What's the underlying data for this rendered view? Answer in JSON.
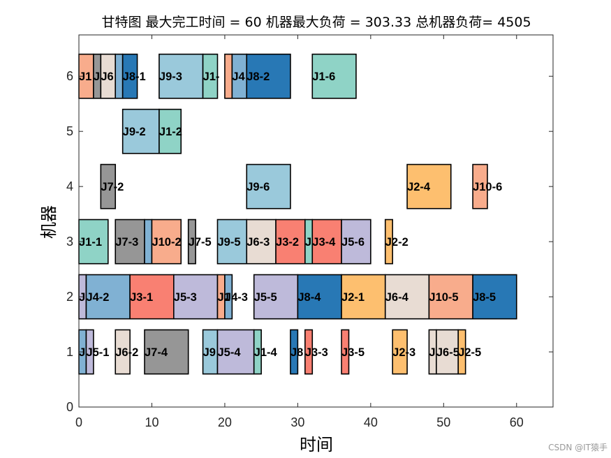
{
  "chart_data": {
    "type": "gantt",
    "title": "甘特图 最大完工时间 = 60 机器最大负荷 = 303.33 总机器负荷= 4505",
    "xlabel": "时间",
    "ylabel": "机器",
    "xlim": [
      0,
      65
    ],
    "ylim": [
      0,
      6.75
    ],
    "xticks": [
      0,
      10,
      20,
      30,
      40,
      50,
      60
    ],
    "yticks": [
      0,
      1,
      2,
      3,
      4,
      5,
      6
    ],
    "grid": false,
    "legend": "none",
    "job_colors": {
      "J1": "#8FD3C6",
      "J2": "#FDBF6F",
      "J3": "#F98072",
      "J4": "#80B1D3",
      "J5": "#BEBADA",
      "J6": "#E8DCD3",
      "J7": "#969696",
      "J8": "#2878B5",
      "J9": "#9AC9DB",
      "J10": "#F8AC8C"
    },
    "tasks": [
      {
        "machine": 1,
        "start": 0,
        "end": 1,
        "job": "J4",
        "label": "J"
      },
      {
        "machine": 1,
        "start": 1,
        "end": 2,
        "job": "J5",
        "label": "J5-1"
      },
      {
        "machine": 1,
        "start": 5,
        "end": 7,
        "job": "J6",
        "label": "J6-2"
      },
      {
        "machine": 1,
        "start": 9,
        "end": 15,
        "job": "J7",
        "label": "J7-4"
      },
      {
        "machine": 1,
        "start": 17,
        "end": 19,
        "job": "J9",
        "label": "J9"
      },
      {
        "machine": 1,
        "start": 19,
        "end": 24,
        "job": "J5",
        "label": "J5-4"
      },
      {
        "machine": 1,
        "start": 24,
        "end": 25,
        "job": "J1",
        "label": "J1-4"
      },
      {
        "machine": 1,
        "start": 29,
        "end": 30,
        "job": "J8",
        "label": "J8"
      },
      {
        "machine": 1,
        "start": 31,
        "end": 32,
        "job": "J3",
        "label": "J3-3"
      },
      {
        "machine": 1,
        "start": 36,
        "end": 37,
        "job": "J3",
        "label": "J3-5"
      },
      {
        "machine": 1,
        "start": 43,
        "end": 45,
        "job": "J2",
        "label": "J2-3"
      },
      {
        "machine": 1,
        "start": 48,
        "end": 49,
        "job": "J6",
        "label": "J"
      },
      {
        "machine": 1,
        "start": 49,
        "end": 52,
        "job": "J6",
        "label": "J6-5"
      },
      {
        "machine": 1,
        "start": 52,
        "end": 53,
        "job": "J2",
        "label": "J2-5"
      },
      {
        "machine": 2,
        "start": 0,
        "end": 1,
        "job": "J5",
        "label": "J"
      },
      {
        "machine": 2,
        "start": 1,
        "end": 7,
        "job": "J4",
        "label": "J4-2"
      },
      {
        "machine": 2,
        "start": 7,
        "end": 13,
        "job": "J3",
        "label": "J3-1"
      },
      {
        "machine": 2,
        "start": 13,
        "end": 19,
        "job": "J5",
        "label": "J5-3"
      },
      {
        "machine": 2,
        "start": 19,
        "end": 20,
        "job": "J10",
        "label": "J1"
      },
      {
        "machine": 2,
        "start": 20,
        "end": 21,
        "job": "J4",
        "label": "J4-3"
      },
      {
        "machine": 2,
        "start": 24,
        "end": 30,
        "job": "J5",
        "label": "J5-5"
      },
      {
        "machine": 2,
        "start": 30,
        "end": 36,
        "job": "J8",
        "label": "J8-4"
      },
      {
        "machine": 2,
        "start": 36,
        "end": 42,
        "job": "J2",
        "label": "J2-1"
      },
      {
        "machine": 2,
        "start": 42,
        "end": 48,
        "job": "J6",
        "label": "J6-4"
      },
      {
        "machine": 2,
        "start": 48,
        "end": 54,
        "job": "J10",
        "label": "J10-5"
      },
      {
        "machine": 2,
        "start": 54,
        "end": 60,
        "job": "J8",
        "label": "J8-5"
      },
      {
        "machine": 3,
        "start": 0,
        "end": 4,
        "job": "J1",
        "label": "J1-1"
      },
      {
        "machine": 3,
        "start": 5,
        "end": 9,
        "job": "J7",
        "label": "J7-3"
      },
      {
        "machine": 3,
        "start": 9,
        "end": 10,
        "job": "J4",
        "label": ""
      },
      {
        "machine": 3,
        "start": 10,
        "end": 14,
        "job": "J10",
        "label": "J10-2"
      },
      {
        "machine": 3,
        "start": 15,
        "end": 16,
        "job": "J7",
        "label": "J7-5"
      },
      {
        "machine": 3,
        "start": 19,
        "end": 23,
        "job": "J9",
        "label": "J9-5"
      },
      {
        "machine": 3,
        "start": 23,
        "end": 27,
        "job": "J6",
        "label": "J6-3"
      },
      {
        "machine": 3,
        "start": 27,
        "end": 31,
        "job": "J3",
        "label": "J3-2"
      },
      {
        "machine": 3,
        "start": 31,
        "end": 32,
        "job": "J1",
        "label": "J"
      },
      {
        "machine": 3,
        "start": 32,
        "end": 36,
        "job": "J3",
        "label": "J3-4"
      },
      {
        "machine": 3,
        "start": 36,
        "end": 40,
        "job": "J5",
        "label": "J5-6"
      },
      {
        "machine": 3,
        "start": 42,
        "end": 43,
        "job": "J2",
        "label": "J2-2"
      },
      {
        "machine": 4,
        "start": 3,
        "end": 5,
        "job": "J7",
        "label": "J7-2"
      },
      {
        "machine": 4,
        "start": 23,
        "end": 29,
        "job": "J9",
        "label": "J9-6"
      },
      {
        "machine": 4,
        "start": 45,
        "end": 51,
        "job": "J2",
        "label": "J2-4"
      },
      {
        "machine": 4,
        "start": 54,
        "end": 56,
        "job": "J10",
        "label": "J10-6"
      },
      {
        "machine": 5,
        "start": 6,
        "end": 11,
        "job": "J9",
        "label": "J9-2"
      },
      {
        "machine": 5,
        "start": 11,
        "end": 14,
        "job": "J1",
        "label": "J1-2"
      },
      {
        "machine": 6,
        "start": 0,
        "end": 2,
        "job": "J10",
        "label": "J1"
      },
      {
        "machine": 6,
        "start": 2,
        "end": 3,
        "job": "J7",
        "label": "J"
      },
      {
        "machine": 6,
        "start": 3,
        "end": 5,
        "job": "J6",
        "label": "J6"
      },
      {
        "machine": 6,
        "start": 5,
        "end": 6,
        "job": "J4",
        "label": ""
      },
      {
        "machine": 6,
        "start": 6,
        "end": 8,
        "job": "J8",
        "label": "J8-1"
      },
      {
        "machine": 6,
        "start": 11,
        "end": 17,
        "job": "J9",
        "label": "J9-3"
      },
      {
        "machine": 6,
        "start": 17,
        "end": 19,
        "job": "J1",
        "label": "J1-"
      },
      {
        "machine": 6,
        "start": 20,
        "end": 21,
        "job": "J10",
        "label": ""
      },
      {
        "machine": 6,
        "start": 21,
        "end": 23,
        "job": "J4",
        "label": "J4"
      },
      {
        "machine": 6,
        "start": 23,
        "end": 29,
        "job": "J8",
        "label": "J8-2"
      },
      {
        "machine": 6,
        "start": 32,
        "end": 38,
        "job": "J1",
        "label": "J1-6"
      }
    ]
  },
  "watermark": "CSDN @IT猿手"
}
